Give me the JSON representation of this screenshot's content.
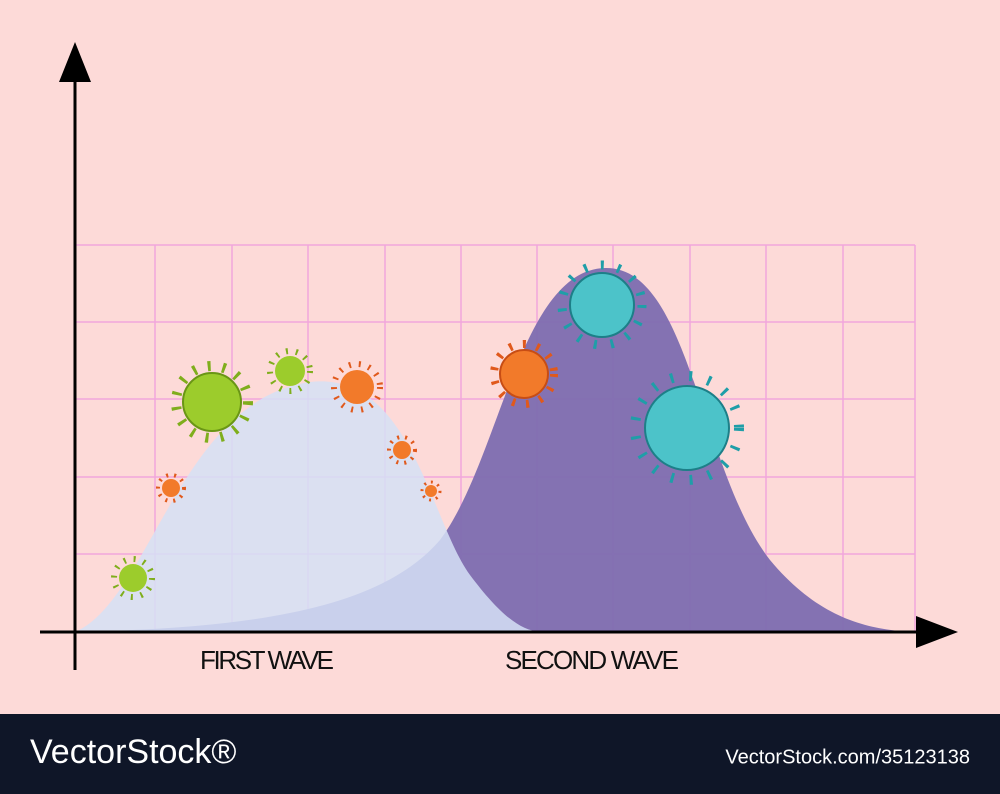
{
  "labels": {
    "first": "FIRST WAVE",
    "second": "SECOND WAVE"
  },
  "footer": {
    "brand": "VectorStock®",
    "url": "VectorStock.com/35123138"
  }
}
